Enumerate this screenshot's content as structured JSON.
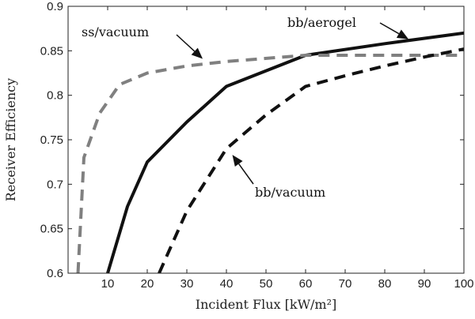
{
  "chart_data": {
    "type": "line",
    "xlabel": "Incident Flux [kW/m²]",
    "ylabel": "Receiver Efficiency",
    "xlim": [
      0,
      100
    ],
    "ylim": [
      0.6,
      0.9
    ],
    "xticks": [
      10,
      20,
      30,
      40,
      50,
      60,
      70,
      80,
      90,
      100
    ],
    "yticks": [
      0.6,
      0.65,
      0.7,
      0.75,
      0.8,
      0.85,
      0.9
    ],
    "grid": false,
    "series": [
      {
        "name": "bb/aerogel",
        "style": "solid",
        "color": "#111111",
        "x": [
          10,
          15,
          20,
          30,
          40,
          60,
          80,
          100
        ],
        "y": [
          0.6,
          0.675,
          0.725,
          0.77,
          0.81,
          0.845,
          0.858,
          0.87
        ]
      },
      {
        "name": "ss/vacuum",
        "style": "dashed",
        "color": "#808080",
        "x": [
          2.5,
          4,
          8,
          13,
          20,
          30,
          40,
          60,
          80,
          100
        ],
        "y": [
          0.6,
          0.73,
          0.78,
          0.812,
          0.825,
          0.833,
          0.838,
          0.845,
          0.845,
          0.845
        ]
      },
      {
        "name": "bb/vacuum",
        "style": "dashed",
        "color": "#111111",
        "x": [
          23,
          30,
          40,
          50,
          60,
          70,
          80,
          90,
          100
        ],
        "y": [
          0.6,
          0.67,
          0.74,
          0.778,
          0.81,
          0.822,
          0.833,
          0.843,
          0.852
        ]
      }
    ],
    "annotations": [
      {
        "text": "ss/vacuum",
        "arrow_to": [
          34,
          0.841
        ]
      },
      {
        "text": "bb/aerogel",
        "arrow_to": [
          86,
          0.863
        ]
      },
      {
        "text": "bb/vacuum",
        "arrow_to": [
          41.5,
          0.733
        ]
      }
    ]
  }
}
